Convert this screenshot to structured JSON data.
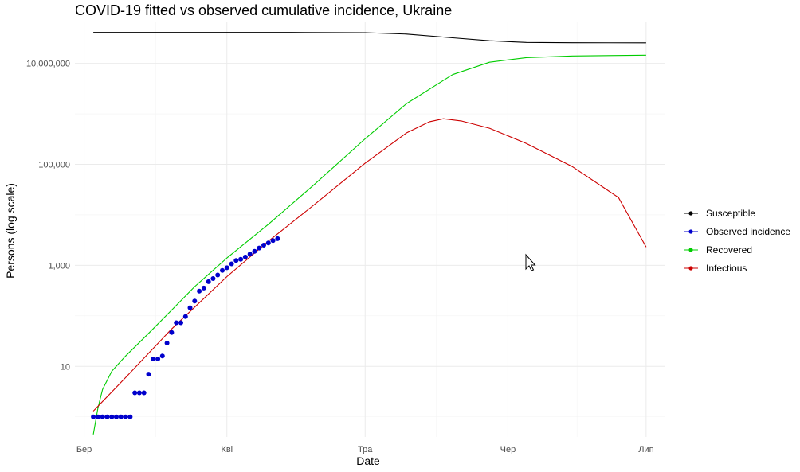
{
  "chart_data": {
    "type": "line",
    "title": "COVID-19 fitted vs observed cumulative incidence, Ukraine",
    "xlabel": "Date",
    "ylabel": "Persons (log scale)",
    "y_scale": "log10",
    "ylim": [
      0.4,
      65000000
    ],
    "x_range": [
      "2020-02-28",
      "2020-07-05"
    ],
    "x_ticks": [
      {
        "date": "2020-03-01",
        "label": "Бер"
      },
      {
        "date": "2020-04-01",
        "label": "Кві"
      },
      {
        "date": "2020-05-01",
        "label": "Тра"
      },
      {
        "date": "2020-06-01",
        "label": "Чер"
      },
      {
        "date": "2020-07-01",
        "label": "Лип"
      }
    ],
    "y_ticks": [
      {
        "value": 10,
        "label": "10"
      },
      {
        "value": 1000,
        "label": "1,000"
      },
      {
        "value": 100000,
        "label": "100,000"
      },
      {
        "value": 10000000,
        "label": "10,000,000"
      }
    ],
    "grid": true,
    "legend_position": "right",
    "legend": [
      {
        "name": "Susceptible",
        "color": "#000000"
      },
      {
        "name": "Observed incidence",
        "color": "#0000cc"
      },
      {
        "name": "Recovered",
        "color": "#00cc00"
      },
      {
        "name": "Infectious",
        "color": "#cc0000"
      }
    ],
    "series": [
      {
        "name": "Susceptible",
        "color": "#000000",
        "kind": "line",
        "points": [
          [
            "2020-03-03",
            41000000
          ],
          [
            "2020-04-15",
            41000000
          ],
          [
            "2020-05-01",
            40500000
          ],
          [
            "2020-05-10",
            38000000
          ],
          [
            "2020-05-20",
            32000000
          ],
          [
            "2020-05-28",
            28000000
          ],
          [
            "2020-06-05",
            26000000
          ],
          [
            "2020-06-15",
            25600000
          ],
          [
            "2020-07-01",
            25500000
          ]
        ]
      },
      {
        "name": "Recovered",
        "color": "#00cc00",
        "kind": "line",
        "points": [
          [
            "2020-03-03",
            0.45
          ],
          [
            "2020-03-04",
            1.5
          ],
          [
            "2020-03-05",
            3.5
          ],
          [
            "2020-03-07",
            8
          ],
          [
            "2020-03-10",
            16
          ],
          [
            "2020-03-15",
            45
          ],
          [
            "2020-03-20",
            130
          ],
          [
            "2020-03-25",
            380
          ],
          [
            "2020-04-01",
            1400
          ],
          [
            "2020-04-10",
            6500
          ],
          [
            "2020-04-20",
            40000
          ],
          [
            "2020-05-01",
            320000
          ],
          [
            "2020-05-10",
            1600000
          ],
          [
            "2020-05-20",
            6000000
          ],
          [
            "2020-05-28",
            10500000
          ],
          [
            "2020-06-05",
            13000000
          ],
          [
            "2020-06-15",
            14000000
          ],
          [
            "2020-07-01",
            14500000
          ]
        ]
      },
      {
        "name": "Infectious",
        "color": "#cc0000",
        "kind": "line",
        "points": [
          [
            "2020-03-03",
            1.3
          ],
          [
            "2020-03-10",
            6
          ],
          [
            "2020-03-20",
            55
          ],
          [
            "2020-04-01",
            600
          ],
          [
            "2020-04-10",
            3000
          ],
          [
            "2020-04-20",
            16000
          ],
          [
            "2020-05-01",
            105000
          ],
          [
            "2020-05-10",
            420000
          ],
          [
            "2020-05-15",
            700000
          ],
          [
            "2020-05-18",
            800000
          ],
          [
            "2020-05-22",
            720000
          ],
          [
            "2020-05-28",
            520000
          ],
          [
            "2020-06-05",
            260000
          ],
          [
            "2020-06-15",
            90000
          ],
          [
            "2020-06-25",
            22000
          ],
          [
            "2020-07-01",
            2300
          ]
        ]
      },
      {
        "name": "Observed incidence",
        "color": "#0000cc",
        "kind": "points",
        "points": [
          [
            "2020-03-03",
            1
          ],
          [
            "2020-03-04",
            1
          ],
          [
            "2020-03-05",
            1
          ],
          [
            "2020-03-06",
            1
          ],
          [
            "2020-03-07",
            1
          ],
          [
            "2020-03-08",
            1
          ],
          [
            "2020-03-09",
            1
          ],
          [
            "2020-03-10",
            1
          ],
          [
            "2020-03-11",
            1
          ],
          [
            "2020-03-12",
            3
          ],
          [
            "2020-03-13",
            3
          ],
          [
            "2020-03-14",
            3
          ],
          [
            "2020-03-15",
            7
          ],
          [
            "2020-03-16",
            14
          ],
          [
            "2020-03-17",
            14
          ],
          [
            "2020-03-18",
            16
          ],
          [
            "2020-03-19",
            29
          ],
          [
            "2020-03-20",
            47
          ],
          [
            "2020-03-21",
            73
          ],
          [
            "2020-03-22",
            73
          ],
          [
            "2020-03-23",
            97
          ],
          [
            "2020-03-24",
            145
          ],
          [
            "2020-03-25",
            196
          ],
          [
            "2020-03-26",
            310
          ],
          [
            "2020-03-27",
            356
          ],
          [
            "2020-03-28",
            475
          ],
          [
            "2020-03-29",
            548
          ],
          [
            "2020-03-30",
            645
          ],
          [
            "2020-03-31",
            794
          ],
          [
            "2020-04-01",
            897
          ],
          [
            "2020-04-02",
            1072
          ],
          [
            "2020-04-03",
            1251
          ],
          [
            "2020-04-04",
            1319
          ],
          [
            "2020-04-05",
            1462
          ],
          [
            "2020-04-06",
            1668
          ],
          [
            "2020-04-07",
            1892
          ],
          [
            "2020-04-08",
            2203
          ],
          [
            "2020-04-09",
            2511
          ],
          [
            "2020-04-10",
            2777
          ],
          [
            "2020-04-11",
            3102
          ],
          [
            "2020-04-12",
            3372
          ]
        ]
      }
    ]
  }
}
